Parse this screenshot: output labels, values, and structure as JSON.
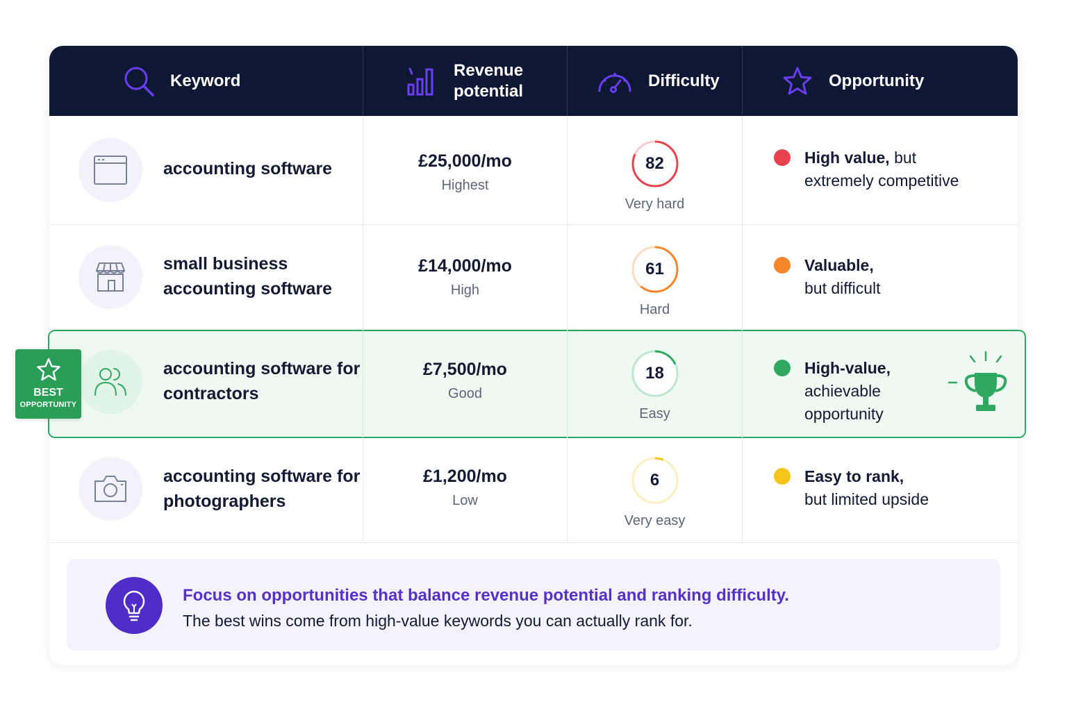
{
  "header": {
    "keyword": "Keyword",
    "revenue_line1": "Revenue",
    "revenue_line2": "potential",
    "difficulty": "Difficulty",
    "opportunity": "Opportunity"
  },
  "rows": [
    {
      "keyword_line1": "accounting software",
      "keyword_line2": "",
      "icon": "browser-window-icon",
      "revenue": "£25,000/mo",
      "revenue_tier": "Highest",
      "difficulty_score": 82,
      "difficulty_label": "Very hard",
      "difficulty_color": "#e8424f",
      "opportunity_bold": "High value,",
      "opportunity_rest_line1": " but",
      "opportunity_line2": "extremely competitive",
      "opportunity_line3": "",
      "dot_color": "#e8424f"
    },
    {
      "keyword_line1": "small business",
      "keyword_line2": "accounting software",
      "icon": "storefront-icon",
      "revenue": "£14,000/mo",
      "revenue_tier": "High",
      "difficulty_score": 61,
      "difficulty_label": "Hard",
      "difficulty_color": "#f5862a",
      "opportunity_bold": "Valuable,",
      "opportunity_rest_line1": "",
      "opportunity_line2": "but difficult",
      "opportunity_line3": "",
      "dot_color": "#f5862a"
    },
    {
      "keyword_line1": "accounting software for",
      "keyword_line2": "contractors",
      "icon": "users-icon",
      "revenue": "£7,500/mo",
      "revenue_tier": "Good",
      "difficulty_score": 18,
      "difficulty_label": "Easy",
      "difficulty_color": "#2fa862",
      "opportunity_bold": "High-value,",
      "opportunity_rest_line1": "",
      "opportunity_line2": "achievable",
      "opportunity_line3": "opportunity",
      "dot_color": "#2fa862"
    },
    {
      "keyword_line1": "accounting software for",
      "keyword_line2": "photographers",
      "icon": "camera-icon",
      "revenue": "£1,200/mo",
      "revenue_tier": "Low",
      "difficulty_score": 6,
      "difficulty_label": "Very easy",
      "difficulty_color": "#f5c518",
      "opportunity_bold": "Easy to rank,",
      "opportunity_rest_line1": "",
      "opportunity_line2": "but limited upside",
      "opportunity_line3": "",
      "dot_color": "#f5c518"
    }
  ],
  "badge": {
    "line1": "BEST",
    "line2": "OPPORTUNITY"
  },
  "callout": {
    "headline": "Focus on opportunities that balance revenue potential and ranking difficulty.",
    "body": "The best wins come from high-value keywords you can actually rank for."
  },
  "colors": {
    "header_bg": "#0e1834",
    "header_icon": "#6a3ef5",
    "highlight_border": "#2fa862",
    "highlight_bg": "#eefaf1",
    "callout_bg": "#f3f2fd",
    "callout_accent": "#5530c9"
  }
}
